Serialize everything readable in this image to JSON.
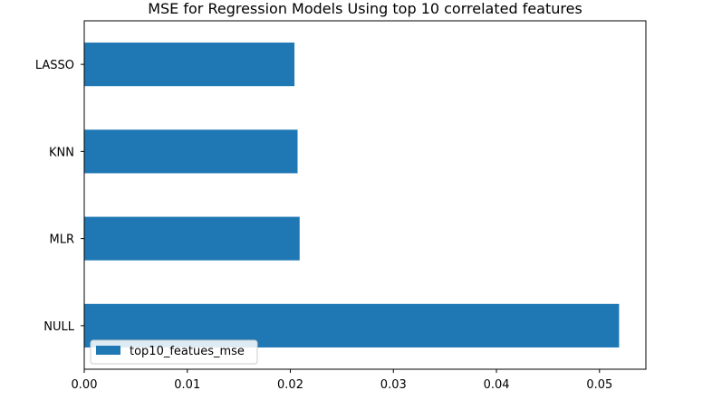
{
  "chart_data": {
    "type": "bar",
    "orientation": "horizontal",
    "title": "MSE for Regression Models Using top 10 correlated features",
    "xlabel": "",
    "ylabel": "",
    "categories": [
      "NULL",
      "MLR",
      "KNN",
      "LASSO"
    ],
    "series": [
      {
        "name": "top10_featues_mse",
        "values": [
          0.0519,
          0.0209,
          0.0207,
          0.0204
        ]
      }
    ],
    "xlim": [
      0,
      0.0545
    ],
    "xticks": [
      "0.00",
      "0.01",
      "0.02",
      "0.03",
      "0.04",
      "0.05"
    ],
    "grid": false,
    "legend_position": "lower-left",
    "colors": {
      "bar": "#1f77b4"
    }
  }
}
